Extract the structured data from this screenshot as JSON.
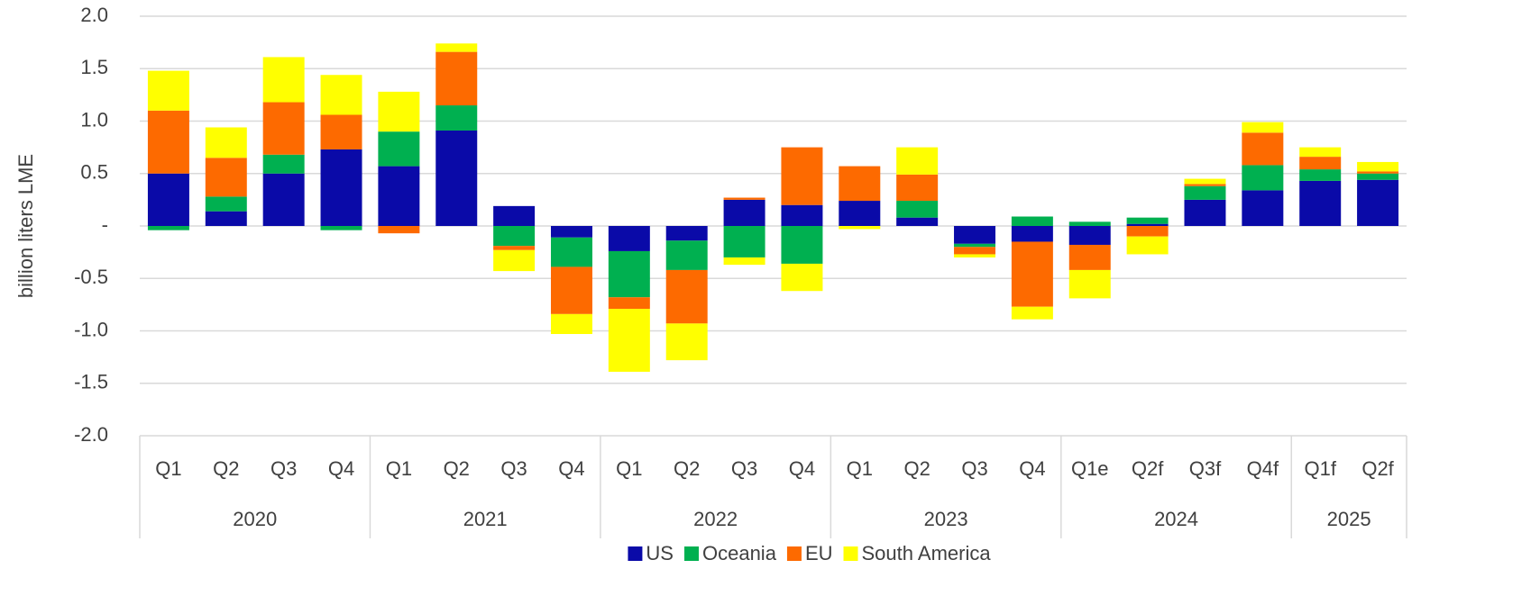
{
  "chart_data": {
    "type": "bar",
    "stacked": true,
    "y_label": "billion liters LME",
    "category_groups": [
      {
        "name": "2020",
        "categories": [
          "Q1",
          "Q2",
          "Q3",
          "Q4"
        ]
      },
      {
        "name": "2021",
        "categories": [
          "Q1",
          "Q2",
          "Q3",
          "Q4"
        ]
      },
      {
        "name": "2022",
        "categories": [
          "Q1",
          "Q2",
          "Q3",
          "Q4"
        ]
      },
      {
        "name": "2023",
        "categories": [
          "Q1",
          "Q2",
          "Q3",
          "Q4"
        ]
      },
      {
        "name": "2024",
        "categories": [
          "Q1e",
          "Q2f",
          "Q3f",
          "Q4f"
        ]
      },
      {
        "name": "2025",
        "categories": [
          "Q1f",
          "Q2f"
        ]
      }
    ],
    "series": [
      {
        "name": "US",
        "color": "#0a0aa8",
        "values": [
          0.5,
          0.14,
          0.5,
          0.73,
          0.57,
          0.91,
          0.19,
          -0.11,
          -0.24,
          -0.14,
          0.25,
          0.2,
          0.24,
          0.08,
          -0.17,
          -0.15,
          -0.18,
          0.02,
          0.25,
          0.34,
          0.43,
          0.44
        ]
      },
      {
        "name": "Oceania",
        "color": "#00b050",
        "values": [
          -0.04,
          0.14,
          0.18,
          -0.04,
          0.33,
          0.24,
          -0.19,
          -0.28,
          -0.44,
          -0.28,
          -0.3,
          -0.36,
          0,
          0.16,
          -0.03,
          0.09,
          0.04,
          0.06,
          0.13,
          0.24,
          0.11,
          0.06
        ]
      },
      {
        "name": "EU",
        "color": "#fd6a00",
        "values": [
          0.6,
          0.37,
          0.5,
          0.33,
          -0.07,
          0.51,
          -0.04,
          -0.45,
          -0.11,
          -0.51,
          0.02,
          0.55,
          0.33,
          0.25,
          -0.07,
          -0.62,
          -0.24,
          -0.1,
          0.02,
          0.31,
          0.12,
          0.02
        ]
      },
      {
        "name": "South America",
        "color": "#ffff00",
        "values": [
          0.38,
          0.29,
          0.43,
          0.38,
          0.38,
          0.08,
          -0.2,
          -0.19,
          -0.6,
          -0.35,
          -0.07,
          -0.26,
          -0.03,
          0.26,
          -0.03,
          -0.12,
          -0.27,
          -0.17,
          0.05,
          0.1,
          0.09,
          0.09
        ]
      }
    ],
    "ylim": [
      -2,
      2
    ],
    "yticks": [
      {
        "value": -2,
        "label": "-2.0"
      },
      -1.5,
      {
        "value": -1,
        "label": "-1.0"
      },
      -0.5,
      {
        "value": 0,
        "label": "-"
      },
      0.5,
      {
        "value": 1,
        "label": "1.0"
      },
      1.5,
      {
        "value": 2,
        "label": "2.0"
      }
    ],
    "grid": true,
    "legend": "bottom"
  }
}
